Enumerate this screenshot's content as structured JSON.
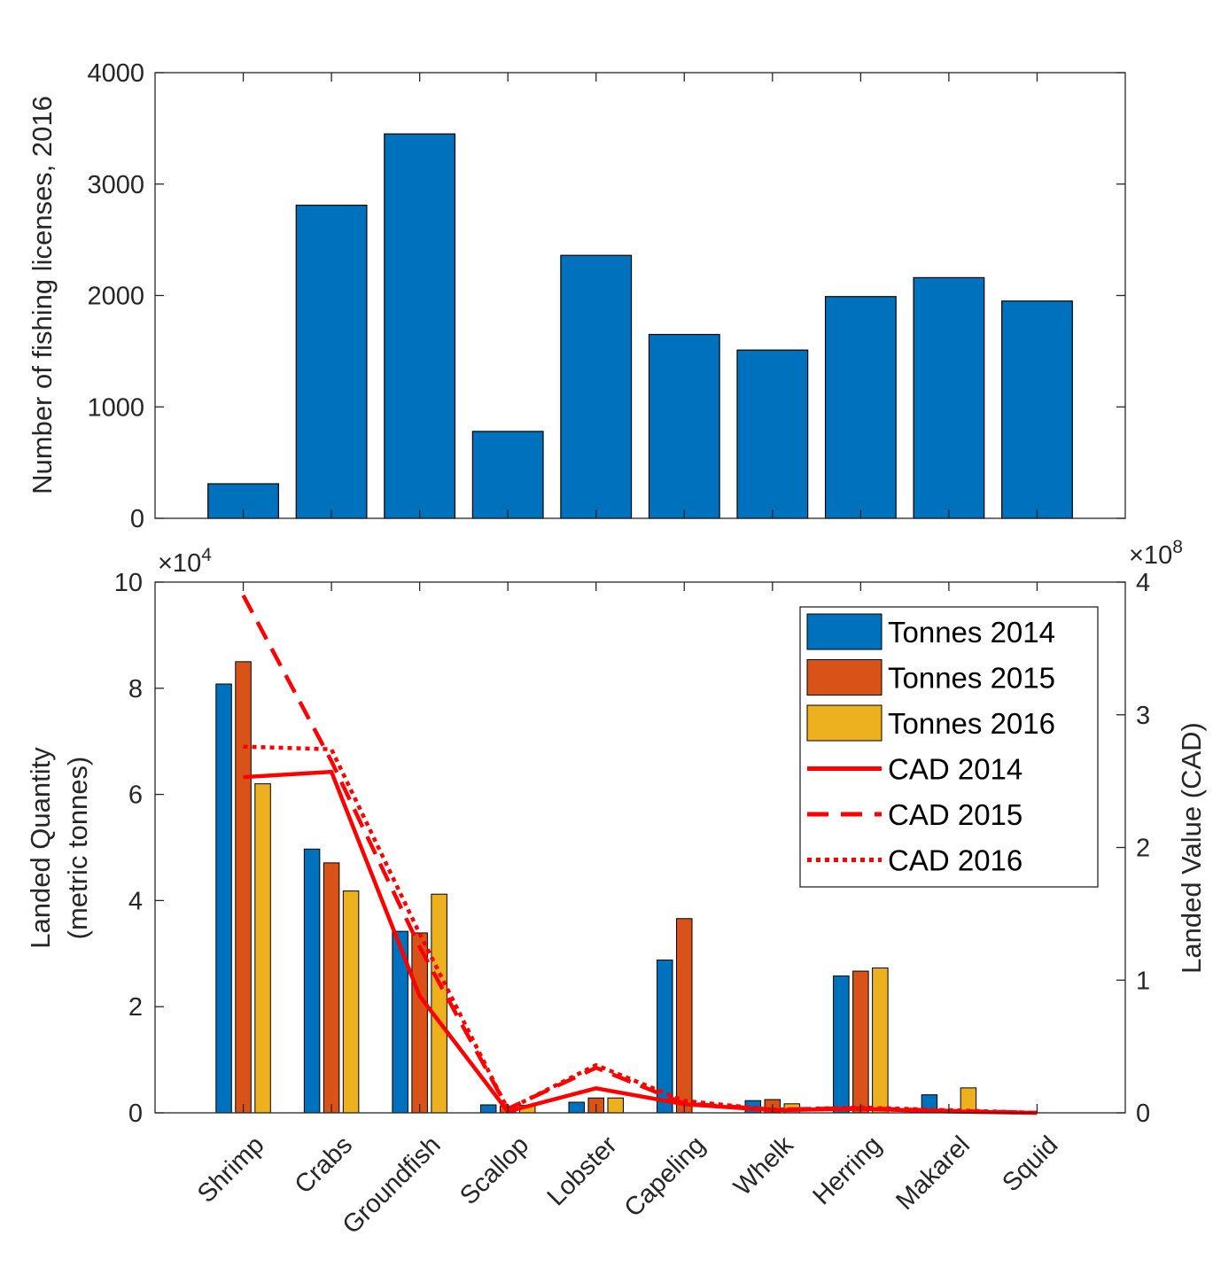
{
  "chart_data": [
    {
      "type": "bar",
      "categories": [
        "Shrimp",
        "Crabs",
        "Groundfish",
        "Scallop",
        "Lobster",
        "Capeling",
        "Whelk",
        "Herring",
        "Makarel",
        "Squid"
      ],
      "values": [
        310,
        2810,
        3450,
        780,
        2360,
        1650,
        1510,
        1990,
        2160,
        1950
      ],
      "ylabel": "Number of fishing licenses, 2016",
      "ylim": [
        0,
        4000
      ],
      "yticks": [
        "0",
        "1000",
        "2000",
        "3000",
        "4000"
      ],
      "color": "#0072BD",
      "grid": false
    },
    {
      "type": "bar",
      "categories": [
        "Shrimp",
        "Crabs",
        "Groundfish",
        "Scallop",
        "Lobster",
        "Capeling",
        "Whelk",
        "Herring",
        "Makarel",
        "Squid"
      ],
      "ylabel_lines": [
        "Landed Quantity",
        "(metric tonnes)"
      ],
      "ylim": [
        0,
        100000
      ],
      "yticks": [
        "0",
        "2",
        "4",
        "6",
        "8",
        "10"
      ],
      "y_exponent_base": "×10",
      "y_exponent": "4",
      "series": [
        {
          "name": "Tonnes 2014",
          "color": "#0072BD",
          "values": [
            80800,
            49700,
            34200,
            1500,
            2000,
            28800,
            2300,
            25800,
            3400,
            0
          ]
        },
        {
          "name": "Tonnes 2015",
          "color": "#D95319",
          "values": [
            85000,
            47100,
            33900,
            1300,
            2800,
            36600,
            2500,
            26700,
            300,
            0
          ]
        },
        {
          "name": "Tonnes 2016",
          "color": "#EDB120",
          "values": [
            62000,
            41800,
            41200,
            1400,
            2800,
            0,
            1700,
            27300,
            4700,
            0
          ]
        }
      ],
      "y2label": "Landed Value (CAD)",
      "y2lim": [
        0,
        400000000
      ],
      "y2ticks": [
        "0",
        "1",
        "2",
        "3",
        "4"
      ],
      "y2_exponent_base": "×10",
      "y2_exponent": "8",
      "lines": [
        {
          "name": "CAD 2014",
          "style": "solid",
          "color": "#FF0000",
          "values": [
            253000000,
            257000000,
            88000000,
            1000000,
            18500000,
            6500000,
            2000000,
            3000000,
            1000000,
            0
          ]
        },
        {
          "name": "CAD 2015",
          "style": "dashed",
          "color": "#FF0000",
          "values": [
            390000000,
            265000000,
            125000000,
            3000000,
            34000000,
            7000000,
            2500000,
            3500000,
            1500000,
            0
          ]
        },
        {
          "name": "CAD 2016",
          "style": "dotted",
          "color": "#FF0000",
          "values": [
            276000000,
            274000000,
            135000000,
            2500000,
            36000000,
            9000000,
            2300000,
            4000000,
            2000000,
            0
          ]
        }
      ],
      "legend_position": "top-right",
      "grid": false
    }
  ]
}
